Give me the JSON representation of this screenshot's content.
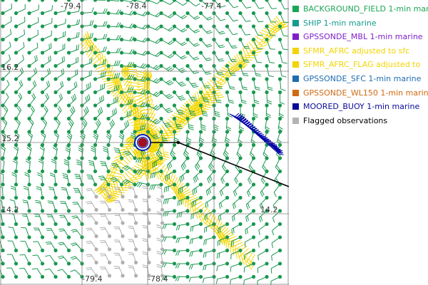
{
  "map": {
    "longitude_labels": [
      "-79.4",
      "-78.4",
      "-77.4"
    ],
    "latitude_labels": [
      "16.2",
      "15.2",
      "14.2"
    ],
    "center_marker": "storm-center",
    "colors": {
      "background": "#ffffff",
      "grid": "#7f7f7f",
      "background_field": "#1a9850",
      "sfmr": "#f2d600",
      "flagged": "#b0b0b0",
      "moored_buoy": "#0000aa",
      "track": "#000000",
      "center_fill": "#a01020",
      "center_ring": "#0020c0"
    }
  },
  "legend": {
    "items": [
      {
        "label": "BACKGROUND_FIELD 1-min mar",
        "color": "#1aa657"
      },
      {
        "label": "SHIP 1-min marine",
        "color": "#159a8e"
      },
      {
        "label": "GPSSONDE_MBL 1-min marine",
        "color": "#7e1fc9"
      },
      {
        "label": "SFMR_AFRC adjusted to sfc",
        "color": "#f3d400"
      },
      {
        "label": "SFMR_AFRC_FLAG adjusted to",
        "color": "#f3d400"
      },
      {
        "label": "GPSSONDE_SFC 1-min marine",
        "color": "#1f6db0"
      },
      {
        "label": "GPSSONDE_WL150 1-min marin",
        "color": "#d06a12"
      },
      {
        "label": "MOORED_BUOY 1-min marine",
        "color": "#0a0a9a"
      },
      {
        "label": "Flagged observations",
        "color": "#b3b3b3"
      }
    ]
  }
}
